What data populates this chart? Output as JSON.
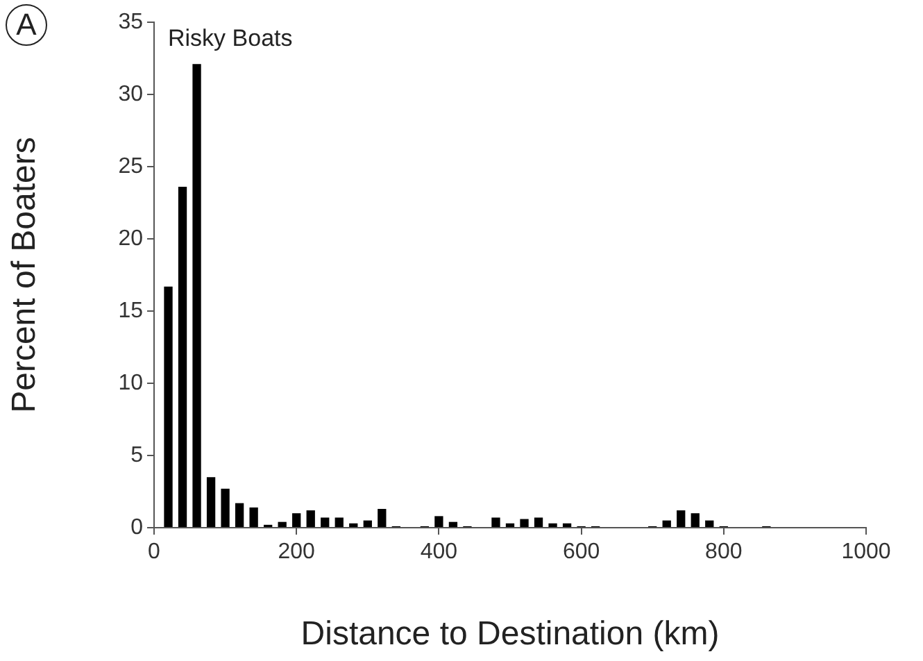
{
  "chart_data": {
    "type": "histogram",
    "xlabel": "Distance to Destination (km)",
    "ylabel": "Percent of Boaters",
    "annotations": [
      "A",
      "Risky Boats"
    ],
    "bins": [
      10,
      30,
      50,
      70,
      90,
      110,
      130,
      150,
      170,
      190,
      210,
      230,
      250,
      270,
      290,
      310,
      330,
      350,
      370,
      390,
      410,
      430,
      450,
      470,
      490,
      510,
      530,
      550,
      570,
      590,
      610,
      630,
      650,
      670,
      690,
      710,
      730,
      750,
      770,
      790,
      810,
      830,
      850,
      870,
      890,
      910,
      930,
      950,
      970,
      990
    ],
    "values": [
      16.7,
      23.6,
      32.1,
      3.5,
      2.7,
      1.7,
      1.4,
      0.2,
      0.4,
      1.0,
      1.2,
      0.7,
      0.7,
      0.3,
      0.5,
      1.3,
      0.1,
      0,
      0.1,
      0.8,
      0.4,
      0.1,
      0,
      0.7,
      0.3,
      0.6,
      0.7,
      0.3,
      0.3,
      0.1,
      0.1,
      0,
      0,
      0,
      0.1,
      0.5,
      1.2,
      1.0,
      0.5,
      0.1,
      0,
      0,
      0.1,
      0,
      0,
      0,
      0,
      0,
      0
    ],
    "color": "#000000",
    "xlim": [
      0,
      1000
    ],
    "xticks": [
      0,
      200,
      400,
      600,
      800,
      1000
    ],
    "ylim": [
      0,
      35
    ],
    "yticks": [
      0,
      5,
      10,
      15,
      20,
      25,
      30,
      35
    ],
    "grid": false
  }
}
